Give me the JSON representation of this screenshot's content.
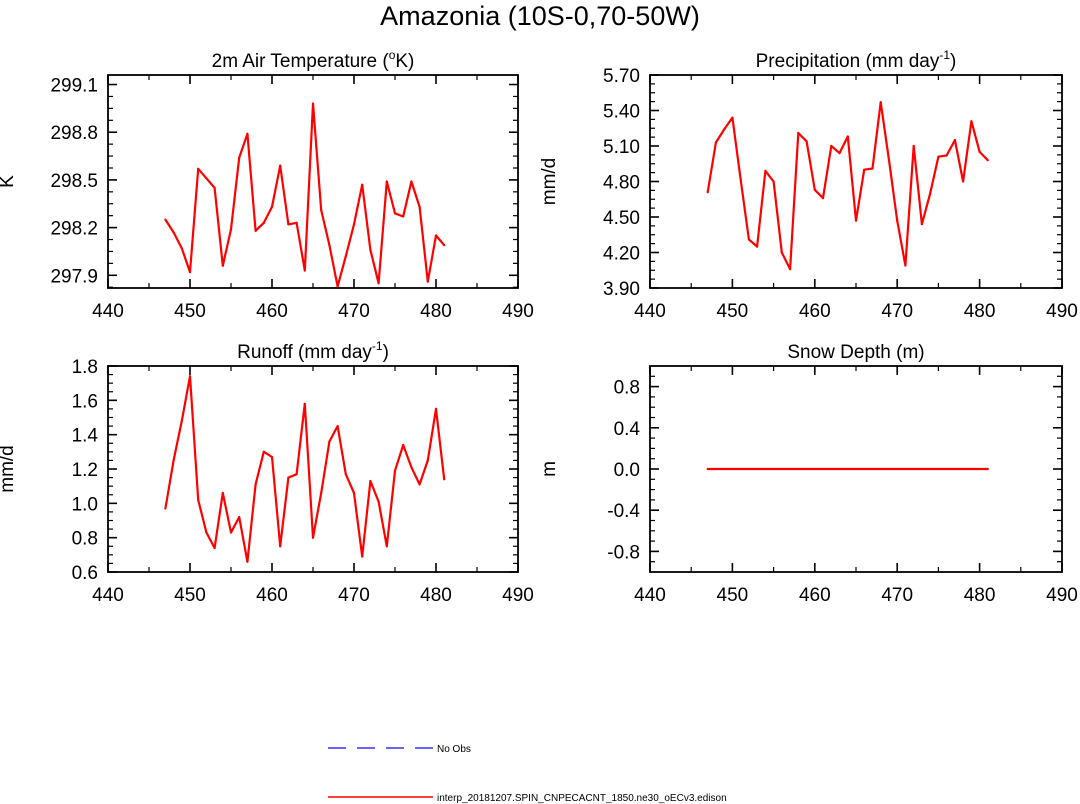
{
  "page": {
    "title": "Amazonia (10S-0,70-50W)"
  },
  "legend": {
    "entries": [
      {
        "label": "No Obs",
        "color": "#3333ff",
        "dash": "dashed"
      },
      {
        "label": "interp_20181207.SPIN_CNPECACNT_1850.ne30_oECv3.edison",
        "color": "#ff0000",
        "dash": "solid"
      }
    ]
  },
  "chart_data": [
    {
      "id": "temperature",
      "type": "line",
      "title": "2m Air Temperature (",
      "title_sup": "o",
      "title_after": "K)",
      "ylabel": "K",
      "xlim": [
        440,
        490
      ],
      "ylim": [
        297.82,
        299.16
      ],
      "xticks": [
        440,
        450,
        460,
        470,
        480,
        490
      ],
      "yticks": [
        297.9,
        298.2,
        298.5,
        298.8,
        299.1
      ],
      "ytick_labels": [
        "297.9",
        "298.2",
        "298.5",
        "298.8",
        "299.1"
      ],
      "series": [
        {
          "name": "interp_20181207.SPIN_CNPECACNT_1850.ne30_oECv3.edison",
          "color": "#ff0000",
          "x": [
            447,
            448,
            449,
            450,
            451,
            452,
            453,
            454,
            455,
            456,
            457,
            458,
            459,
            460,
            461,
            462,
            463,
            464,
            465,
            466,
            467,
            468,
            469,
            470,
            471,
            472,
            473,
            474,
            475,
            476,
            477,
            478,
            479,
            480,
            481
          ],
          "y": [
            298.25,
            298.17,
            298.07,
            297.92,
            298.57,
            298.51,
            298.45,
            297.96,
            298.19,
            298.64,
            298.79,
            298.18,
            298.23,
            298.33,
            298.59,
            298.22,
            298.23,
            297.93,
            298.98,
            298.31,
            298.09,
            297.83,
            298.02,
            298.22,
            298.47,
            298.06,
            297.85,
            298.49,
            298.29,
            298.27,
            298.49,
            298.33,
            297.86,
            298.15,
            298.09
          ]
        }
      ]
    },
    {
      "id": "precipitation",
      "type": "line",
      "title": "Precipitation (mm day",
      "title_sup": "-1",
      "title_after": ")",
      "ylabel": "mm/d",
      "xlim": [
        440,
        490
      ],
      "ylim": [
        3.9,
        5.7
      ],
      "xticks": [
        440,
        450,
        460,
        470,
        480,
        490
      ],
      "yticks": [
        3.9,
        4.2,
        4.5,
        4.8,
        5.1,
        5.4,
        5.7
      ],
      "ytick_labels": [
        "3.90",
        "4.20",
        "4.50",
        "4.80",
        "5.10",
        "5.40",
        "5.70"
      ],
      "series": [
        {
          "name": "interp_20181207.SPIN_CNPECACNT_1850.ne30_oECv3.edison",
          "color": "#ff0000",
          "x": [
            447,
            448,
            449,
            450,
            451,
            452,
            453,
            454,
            455,
            456,
            457,
            458,
            459,
            460,
            461,
            462,
            463,
            464,
            465,
            466,
            467,
            468,
            469,
            470,
            471,
            472,
            473,
            474,
            475,
            476,
            477,
            478,
            479,
            480,
            481
          ],
          "y": [
            4.71,
            5.13,
            5.24,
            5.34,
            4.82,
            4.31,
            4.25,
            4.89,
            4.8,
            4.2,
            4.06,
            5.21,
            5.14,
            4.73,
            4.66,
            5.1,
            5.04,
            5.18,
            4.47,
            4.9,
            4.91,
            5.47,
            4.98,
            4.47,
            4.09,
            5.1,
            4.44,
            4.7,
            5.01,
            5.02,
            5.15,
            4.8,
            5.31,
            5.05,
            4.98
          ]
        }
      ]
    },
    {
      "id": "runoff",
      "type": "line",
      "title": "Runoff (mm day",
      "title_sup": "-1",
      "title_after": ")",
      "ylabel": "mm/d",
      "xlim": [
        440,
        490
      ],
      "ylim": [
        0.6,
        1.8
      ],
      "xticks": [
        440,
        450,
        460,
        470,
        480,
        490
      ],
      "yticks": [
        0.6,
        0.8,
        1.0,
        1.2,
        1.4,
        1.6,
        1.8
      ],
      "ytick_labels": [
        "0.6",
        "0.8",
        "1.0",
        "1.2",
        "1.4",
        "1.6",
        "1.8"
      ],
      "series": [
        {
          "name": "interp_20181207.SPIN_CNPECACNT_1850.ne30_oECv3.edison",
          "color": "#ff0000",
          "x": [
            447,
            448,
            449,
            450,
            451,
            452,
            453,
            454,
            455,
            456,
            457,
            458,
            459,
            460,
            461,
            462,
            463,
            464,
            465,
            466,
            467,
            468,
            469,
            470,
            471,
            472,
            473,
            474,
            475,
            476,
            477,
            478,
            479,
            480,
            481
          ],
          "y": [
            0.97,
            1.25,
            1.48,
            1.74,
            1.02,
            0.83,
            0.74,
            1.06,
            0.83,
            0.92,
            0.66,
            1.11,
            1.3,
            1.27,
            0.75,
            1.15,
            1.17,
            1.58,
            0.8,
            1.06,
            1.36,
            1.45,
            1.17,
            1.06,
            0.69,
            1.13,
            1.01,
            0.75,
            1.19,
            1.34,
            1.21,
            1.11,
            1.25,
            1.55,
            1.14
          ]
        }
      ]
    },
    {
      "id": "snow",
      "type": "line",
      "title": "Snow Depth (m)",
      "title_sup": "",
      "title_after": "",
      "ylabel": "m",
      "xlim": [
        440,
        490
      ],
      "ylim": [
        -1.0,
        1.0
      ],
      "xticks": [
        440,
        450,
        460,
        470,
        480,
        490
      ],
      "yticks": [
        -0.8,
        -0.4,
        0.0,
        0.4,
        0.8
      ],
      "ytick_labels": [
        "-0.8",
        "-0.4",
        "0.0",
        "0.4",
        "0.8"
      ],
      "series": [
        {
          "name": "interp_20181207.SPIN_CNPECACNT_1850.ne30_oECv3.edison",
          "color": "#ff0000",
          "x": [
            447,
            448,
            449,
            450,
            451,
            452,
            453,
            454,
            455,
            456,
            457,
            458,
            459,
            460,
            461,
            462,
            463,
            464,
            465,
            466,
            467,
            468,
            469,
            470,
            471,
            472,
            473,
            474,
            475,
            476,
            477,
            478,
            479,
            480,
            481
          ],
          "y": [
            0,
            0,
            0,
            0,
            0,
            0,
            0,
            0,
            0,
            0,
            0,
            0,
            0,
            0,
            0,
            0,
            0,
            0,
            0,
            0,
            0,
            0,
            0,
            0,
            0,
            0,
            0,
            0,
            0,
            0,
            0,
            0,
            0,
            0,
            0
          ]
        }
      ]
    }
  ]
}
